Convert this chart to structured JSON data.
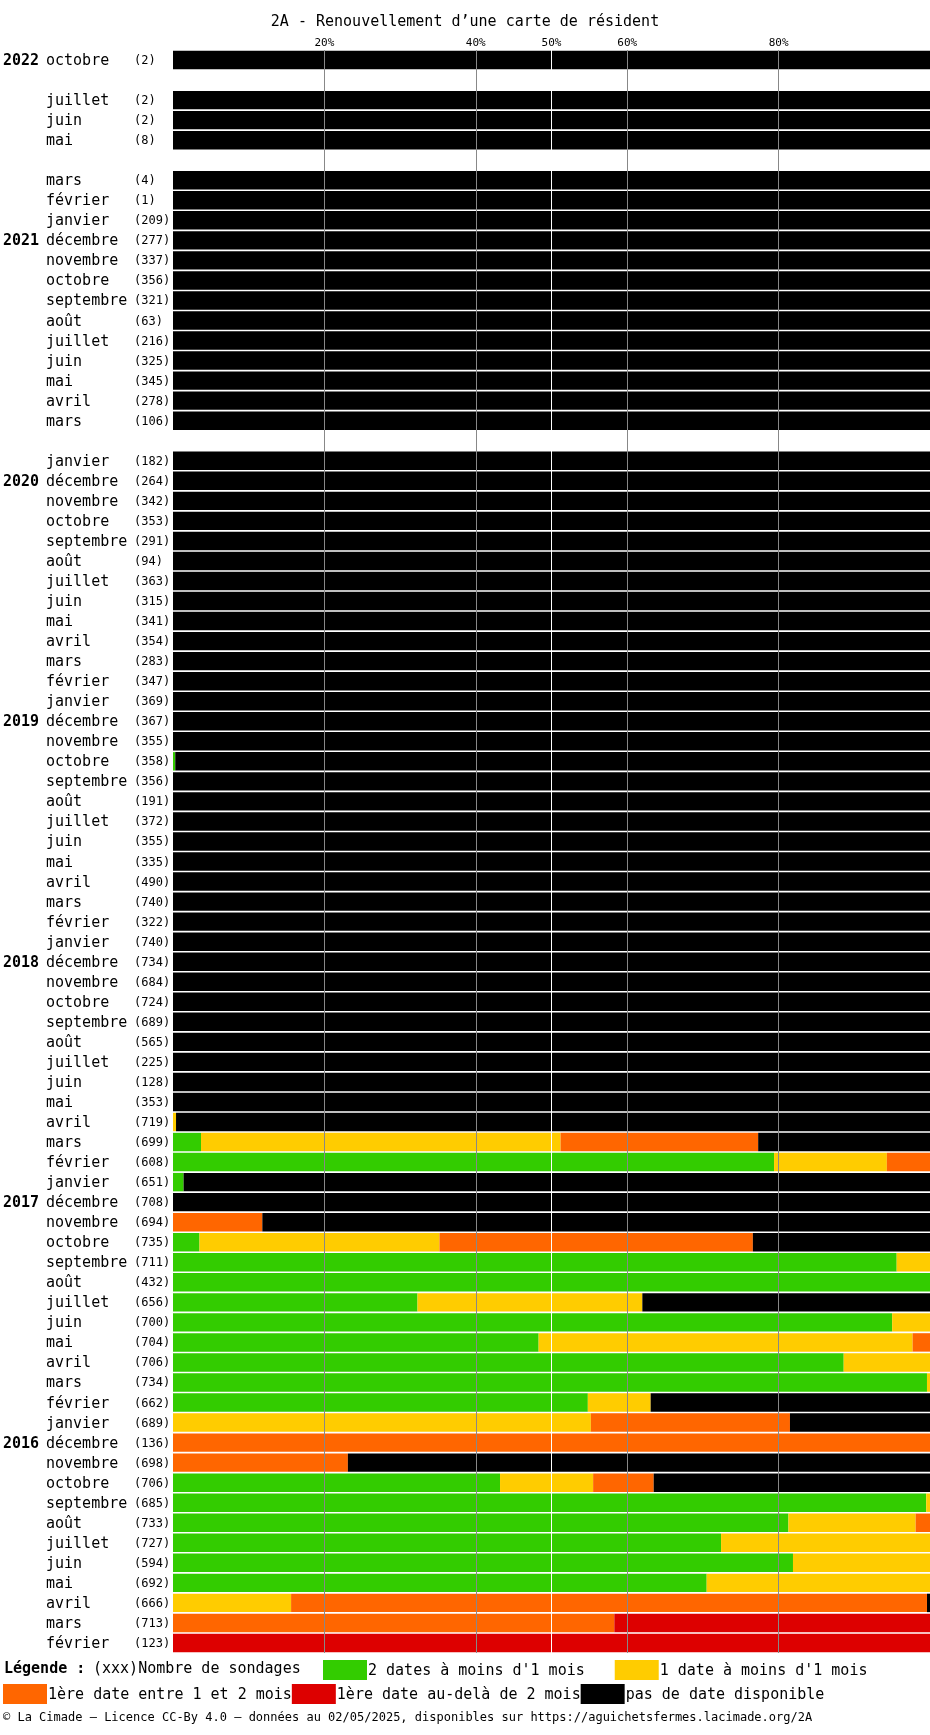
{
  "chart_data": {
    "type": "bar",
    "orientation": "horizontal",
    "stacked": true,
    "title": "2A - Renouvellement d’une carte de résident",
    "legend_title": "Légende :",
    "annotations": [
      "(xxx)Nombre de sondages",
      "© La Cimade — Licence CC-By 4.0 — données au 02/05/2025, disponibles sur https://aguichetsfermes.lacimade.org/2A"
    ],
    "categories": [
      "2022 octobre (2)",
      null,
      "juillet (2)",
      "juin (2)",
      "mai (8)",
      null,
      "mars (4)",
      "février (1)",
      "janvier (209)",
      "2021 décembre (277)",
      "novembre (337)",
      "octobre (356)",
      "septembre (321)",
      "août (63)",
      "juillet (216)",
      "juin (325)",
      "mai (345)",
      "avril (278)",
      "mars (106)",
      null,
      "janvier (182)",
      "2020 décembre (264)",
      "novembre (342)",
      "octobre (353)",
      "septembre (291)",
      "août (94)",
      "juillet (363)",
      "juin (315)",
      "mai (341)",
      "avril (354)",
      "mars (283)",
      "février (347)",
      "janvier (369)",
      "2019 décembre (367)",
      "novembre (355)",
      "octobre (358)",
      "septembre (356)",
      "août (191)",
      "juillet (372)",
      "juin (355)",
      "mai (335)",
      "avril (490)",
      "mars (740)",
      "février (322)",
      "janvier (740)",
      "2018 décembre (734)",
      "novembre (684)",
      "octobre (724)",
      "septembre (689)",
      "août (565)",
      "juillet (225)",
      "juin (128)",
      "mai (353)",
      "avril (719)",
      "mars (699)",
      "février (608)",
      "janvier (651)",
      "2017 décembre (708)",
      "novembre (694)",
      "octobre (735)",
      "septembre (711)",
      "août (432)",
      "juillet (656)",
      "juin (700)",
      "mai (704)",
      "avril (706)",
      "mars (734)",
      "février (662)",
      "janvier (689)",
      "2016 décembre (136)",
      "novembre (698)",
      "octobre (706)",
      "septembre (685)",
      "août (733)",
      "juillet (727)",
      "juin (594)",
      "mai (692)",
      "avril (666)",
      "mars (713)",
      "février (123)"
    ],
    "series": [
      {
        "name": "2 dates à moins d'1 mois",
        "color": "#33cc00",
        "values": [
          null,
          null,
          null,
          null,
          null,
          null,
          null,
          null,
          null,
          null,
          null,
          null,
          null,
          null,
          null,
          null,
          null,
          null,
          null,
          null,
          null,
          null,
          null,
          null,
          null,
          null,
          null,
          null,
          null,
          null,
          null,
          null,
          null,
          null,
          null,
          0.3,
          null,
          null,
          null,
          null,
          null,
          null,
          null,
          null,
          null,
          null,
          null,
          null,
          null,
          null,
          null,
          null,
          null,
          null,
          3.7,
          79.4,
          1.4,
          null,
          null,
          3.5,
          95.6,
          100,
          32.3,
          95.0,
          48.3,
          88.6,
          99.6,
          54.8,
          null,
          null,
          null,
          43.2,
          99.5,
          81.3,
          72.4,
          81.9,
          70.5,
          null,
          null,
          null
        ]
      },
      {
        "name": "1 date à moins d'1 mois",
        "color": "#ffcc00",
        "values": [
          null,
          null,
          null,
          null,
          null,
          null,
          null,
          null,
          null,
          null,
          null,
          null,
          null,
          null,
          null,
          null,
          null,
          null,
          null,
          null,
          null,
          null,
          null,
          null,
          null,
          null,
          null,
          null,
          null,
          null,
          null,
          null,
          null,
          null,
          null,
          null,
          null,
          null,
          null,
          null,
          null,
          null,
          null,
          null,
          null,
          null,
          null,
          null,
          null,
          null,
          null,
          null,
          null,
          0.4,
          47.5,
          14.9,
          null,
          null,
          null,
          31.7,
          4.4,
          null,
          29.7,
          5.0,
          49.4,
          11.4,
          0.4,
          8.3,
          55.2,
          null,
          null,
          12.3,
          0.5,
          16.8,
          27.6,
          18.1,
          29.5,
          15.6,
          null,
          null
        ]
      },
      {
        "name": "1ère date entre 1 et 2 mois",
        "color": "#ff6600",
        "values": [
          null,
          null,
          null,
          null,
          null,
          null,
          null,
          null,
          null,
          null,
          null,
          null,
          null,
          null,
          null,
          null,
          null,
          null,
          null,
          null,
          null,
          null,
          null,
          null,
          null,
          null,
          null,
          null,
          null,
          null,
          null,
          null,
          null,
          null,
          null,
          null,
          null,
          null,
          null,
          null,
          null,
          null,
          null,
          null,
          null,
          null,
          null,
          null,
          null,
          null,
          null,
          null,
          null,
          null,
          26.1,
          5.7,
          null,
          null,
          11.8,
          41.4,
          null,
          null,
          null,
          null,
          2.3,
          null,
          null,
          null,
          26.3,
          100,
          23.1,
          8.0,
          null,
          1.9,
          null,
          null,
          null,
          84.0,
          58.3,
          null
        ]
      },
      {
        "name": "1ère date au-delà de 2 mois",
        "color": "#dd0000",
        "values": [
          null,
          null,
          null,
          null,
          null,
          null,
          null,
          null,
          null,
          null,
          null,
          null,
          null,
          null,
          null,
          null,
          null,
          null,
          null,
          null,
          null,
          null,
          null,
          null,
          null,
          null,
          null,
          null,
          null,
          null,
          null,
          null,
          null,
          null,
          null,
          null,
          null,
          null,
          null,
          null,
          null,
          null,
          null,
          null,
          null,
          null,
          null,
          null,
          null,
          null,
          null,
          null,
          null,
          null,
          null,
          null,
          null,
          null,
          null,
          null,
          null,
          null,
          null,
          null,
          null,
          null,
          null,
          null,
          null,
          null,
          null,
          null,
          null,
          null,
          null,
          null,
          null,
          null,
          41.7,
          100
        ]
      },
      {
        "name": "pas de date disponible",
        "color": "#000000",
        "values": [
          100,
          null,
          100,
          100,
          100,
          null,
          100,
          100,
          100,
          100,
          100,
          100,
          100,
          100,
          100,
          100,
          100,
          100,
          100,
          null,
          100,
          100,
          100,
          100,
          100,
          100,
          100,
          100,
          100,
          100,
          100,
          100,
          100,
          100,
          100,
          99.7,
          100,
          100,
          100,
          100,
          100,
          100,
          100,
          100,
          100,
          100,
          100,
          100,
          100,
          100,
          100,
          100,
          100,
          99.6,
          22.7,
          null,
          98.6,
          100,
          88.2,
          23.4,
          null,
          null,
          38.0,
          null,
          null,
          null,
          null,
          36.9,
          18.5,
          null,
          76.9,
          36.5,
          null,
          null,
          null,
          null,
          null,
          0.4,
          null,
          null
        ]
      }
    ],
    "xlim": [
      0,
      100
    ],
    "xticks": [
      {
        "value": 20,
        "label": "20%"
      },
      {
        "value": 40,
        "label": "40%"
      },
      {
        "value": 50,
        "label": "50%"
      },
      {
        "value": 60,
        "label": "60%"
      },
      {
        "value": 80,
        "label": "80%"
      }
    ],
    "ref_lines": [
      {
        "axis": "x",
        "value": 50,
        "color": "#ffffff"
      }
    ],
    "grid": true,
    "legend": "bottom"
  }
}
